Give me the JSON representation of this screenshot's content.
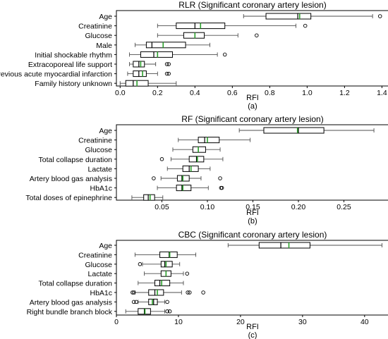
{
  "figure": {
    "panels_text": [
      "(a)",
      "(b)",
      "(c)"
    ]
  },
  "colors": {
    "box_edge": "#000000",
    "whisker": "#4d4d4d",
    "median": "#000000",
    "mean": "#2ca02c",
    "outlier": "#000000",
    "background": "#ffffff"
  },
  "chart_data": [
    {
      "type": "box",
      "title": "RLR (Significant coronary artery lesion)",
      "xlabel": "RFI",
      "caption": "(a)",
      "xlim": [
        -0.02,
        1.44
      ],
      "xticks": [
        0.0,
        0.2,
        0.4,
        0.6,
        0.8,
        1.0,
        1.2,
        1.4
      ],
      "xtick_labels": [
        "0.0",
        "0.2",
        "0.4",
        "0.6",
        "0.8",
        "1.0",
        "1.2",
        "1.4"
      ],
      "categories": [
        "Age",
        "Creatinine",
        "Glucose",
        "Male",
        "Initial shockable rhythm",
        "Extracoporeal life support",
        "Previous acute myocardial infarction",
        "Family history unknown"
      ],
      "boxes": [
        {
          "whislo": 0.66,
          "q1": 0.78,
          "med": 0.95,
          "mean": 0.96,
          "q3": 1.02,
          "whishi": 1.35,
          "fliers": [
            1.39
          ]
        },
        {
          "whislo": 0.2,
          "q1": 0.3,
          "med": 0.4,
          "mean": 0.43,
          "q3": 0.56,
          "whishi": 0.94,
          "fliers": [
            0.99
          ]
        },
        {
          "whislo": 0.2,
          "q1": 0.34,
          "med": 0.4,
          "mean": 0.4,
          "q3": 0.45,
          "whishi": 0.63,
          "fliers": [
            0.73
          ]
        },
        {
          "whislo": 0.08,
          "q1": 0.14,
          "med": 0.17,
          "mean": 0.23,
          "q3": 0.35,
          "whishi": 0.48,
          "fliers": []
        },
        {
          "whislo": 0.05,
          "q1": 0.11,
          "med": 0.18,
          "mean": 0.2,
          "q3": 0.28,
          "whishi": 0.52,
          "fliers": [
            0.56
          ]
        },
        {
          "whislo": 0.05,
          "q1": 0.07,
          "med": 0.1,
          "mean": 0.11,
          "q3": 0.13,
          "whishi": 0.19,
          "fliers": [
            0.25,
            0.26
          ]
        },
        {
          "whislo": 0.04,
          "q1": 0.07,
          "med": 0.1,
          "mean": 0.12,
          "q3": 0.14,
          "whishi": 0.2,
          "fliers": [
            0.25,
            0.26
          ]
        },
        {
          "whislo": 0.0,
          "q1": 0.03,
          "med": 0.07,
          "mean": 0.09,
          "q3": 0.15,
          "whishi": 0.3,
          "fliers": []
        }
      ]
    },
    {
      "type": "box",
      "title": "RF (Significant coronary artery lesion)",
      "xlabel": "RFI",
      "caption": "(b)",
      "xlim": [
        0.0,
        0.3
      ],
      "xticks": [
        0.05,
        0.1,
        0.15,
        0.2,
        0.25
      ],
      "xtick_labels": [
        "0.05",
        "0.10",
        "0.15",
        "0.20",
        "0.25"
      ],
      "categories": [
        "Age",
        "Creatinine",
        "Glucose",
        "Total collapse duration",
        "Lactate",
        "Artery blood gas analysis",
        "HbA1c",
        "Total doses of epinephrine"
      ],
      "boxes": [
        {
          "whislo": 0.135,
          "q1": 0.162,
          "med": 0.2,
          "mean": 0.199,
          "q3": 0.228,
          "whishi": 0.283,
          "fliers": []
        },
        {
          "whislo": 0.068,
          "q1": 0.09,
          "med": 0.097,
          "mean": 0.1,
          "q3": 0.113,
          "whishi": 0.147,
          "fliers": []
        },
        {
          "whislo": 0.062,
          "q1": 0.084,
          "med": 0.09,
          "mean": 0.09,
          "q3": 0.098,
          "whishi": 0.114,
          "fliers": []
        },
        {
          "whislo": 0.06,
          "q1": 0.08,
          "med": 0.088,
          "mean": 0.089,
          "q3": 0.096,
          "whishi": 0.117,
          "fliers": [
            0.05
          ]
        },
        {
          "whislo": 0.056,
          "q1": 0.073,
          "med": 0.08,
          "mean": 0.082,
          "q3": 0.09,
          "whishi": 0.103,
          "fliers": []
        },
        {
          "whislo": 0.049,
          "q1": 0.067,
          "med": 0.072,
          "mean": 0.073,
          "q3": 0.08,
          "whishi": 0.093,
          "fliers": [
            0.041,
            0.114
          ]
        },
        {
          "whislo": 0.045,
          "q1": 0.066,
          "med": 0.072,
          "mean": 0.073,
          "q3": 0.082,
          "whishi": 0.101,
          "fliers": [
            0.115,
            0.116
          ]
        },
        {
          "whislo": 0.017,
          "q1": 0.03,
          "med": 0.035,
          "mean": 0.037,
          "q3": 0.042,
          "whishi": 0.051,
          "fliers": []
        }
      ]
    },
    {
      "type": "box",
      "title": "CBC (Significant coronary artery lesion)",
      "xlabel": "RFI",
      "caption": "(c)",
      "xlim": [
        0.0,
        44.0
      ],
      "xticks": [
        0,
        10,
        20,
        30,
        40
      ],
      "xtick_labels": [
        "0",
        "10",
        "20",
        "30",
        "40"
      ],
      "categories": [
        "Age",
        "Creatinine",
        "Glucose",
        "Lactate",
        "Total collapse duration",
        "HbA1c",
        "Artery blood gas analysis",
        "Right bundle branch block"
      ],
      "boxes": [
        {
          "whislo": 18.0,
          "q1": 23.0,
          "med": 26.5,
          "mean": 27.8,
          "q3": 31.2,
          "whishi": 42.8,
          "fliers": []
        },
        {
          "whislo": 3.0,
          "q1": 7.0,
          "med": 8.5,
          "mean": 8.6,
          "q3": 9.8,
          "whishi": 12.8,
          "fliers": []
        },
        {
          "whislo": 4.2,
          "q1": 7.2,
          "med": 7.8,
          "mean": 8.0,
          "q3": 9.0,
          "whishi": 10.2,
          "fliers": [
            3.8
          ]
        },
        {
          "whislo": 4.5,
          "q1": 7.2,
          "med": 8.0,
          "mean": 8.0,
          "q3": 8.8,
          "whishi": 10.8,
          "fliers": [
            11.4
          ]
        },
        {
          "whislo": 3.5,
          "q1": 6.2,
          "med": 7.0,
          "mean": 7.3,
          "q3": 8.6,
          "whishi": 10.8,
          "fliers": []
        },
        {
          "whislo": 3.0,
          "q1": 5.2,
          "med": 6.2,
          "mean": 6.6,
          "q3": 7.6,
          "whishi": 10.5,
          "fliers": [
            2.6,
            2.8,
            11.5,
            11.8,
            14.0
          ]
        },
        {
          "whislo": 3.5,
          "q1": 5.2,
          "med": 6.0,
          "mean": 5.8,
          "q3": 6.6,
          "whishi": 7.8,
          "fliers": [
            2.8,
            3.2,
            8.2
          ]
        },
        {
          "whislo": 1.5,
          "q1": 3.5,
          "med": 4.5,
          "mean": 4.6,
          "q3": 5.5,
          "whishi": 7.8,
          "fliers": [
            8.2,
            8.6
          ]
        }
      ]
    }
  ]
}
